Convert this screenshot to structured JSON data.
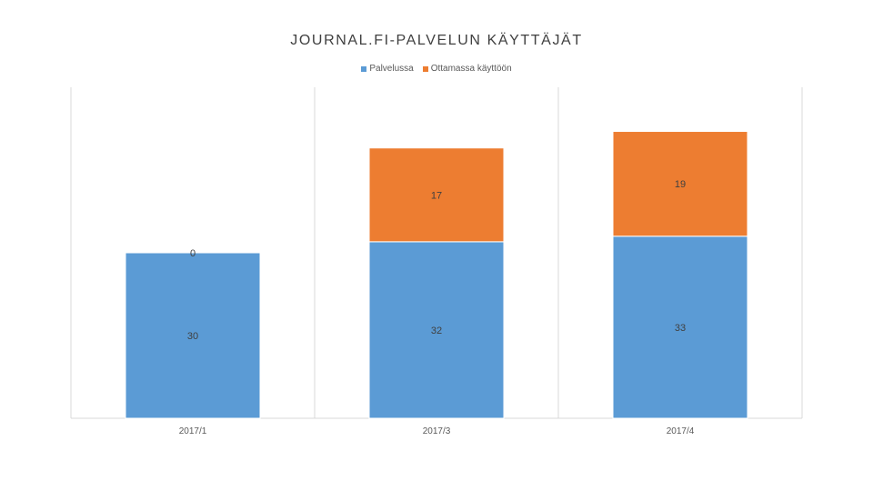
{
  "chart_data": {
    "type": "bar",
    "stacked": true,
    "title": "JOURNAL.FI-PALVELUN KÄYTTÄJÄT",
    "categories": [
      "2017/1",
      "2017/3",
      "2017/4"
    ],
    "series": [
      {
        "name": "Palvelussa",
        "values": [
          30,
          32,
          33
        ],
        "color": "#5B9BD5"
      },
      {
        "name": "Ottamassa käyttöön",
        "values": [
          0,
          17,
          19
        ],
        "color": "#ED7D31"
      }
    ],
    "ylim": [
      0,
      60
    ],
    "grid": "vertical",
    "legend_position": "top"
  }
}
